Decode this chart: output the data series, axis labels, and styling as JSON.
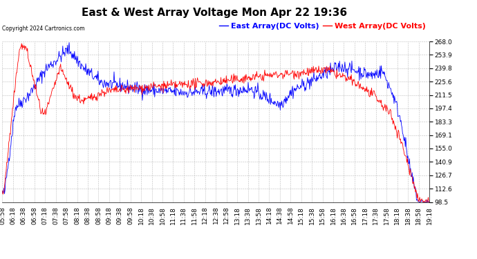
{
  "title": "East & West Array Voltage Mon Apr 22 19:36",
  "legend_east": "East Array(DC Volts)",
  "legend_west": "West Array(DC Volts)",
  "copyright": "Copyright 2024 Cartronics.com",
  "east_color": "#0000ff",
  "west_color": "#ff0000",
  "background_color": "#ffffff",
  "grid_color": "#bbbbbb",
  "ylim": [
    98.5,
    268.0
  ],
  "yticks": [
    98.5,
    112.6,
    126.7,
    140.9,
    155.0,
    169.1,
    183.3,
    197.4,
    211.5,
    225.6,
    239.8,
    253.9,
    268.0
  ],
  "title_fontsize": 11,
  "tick_fontsize": 6.5,
  "legend_fontsize": 8
}
